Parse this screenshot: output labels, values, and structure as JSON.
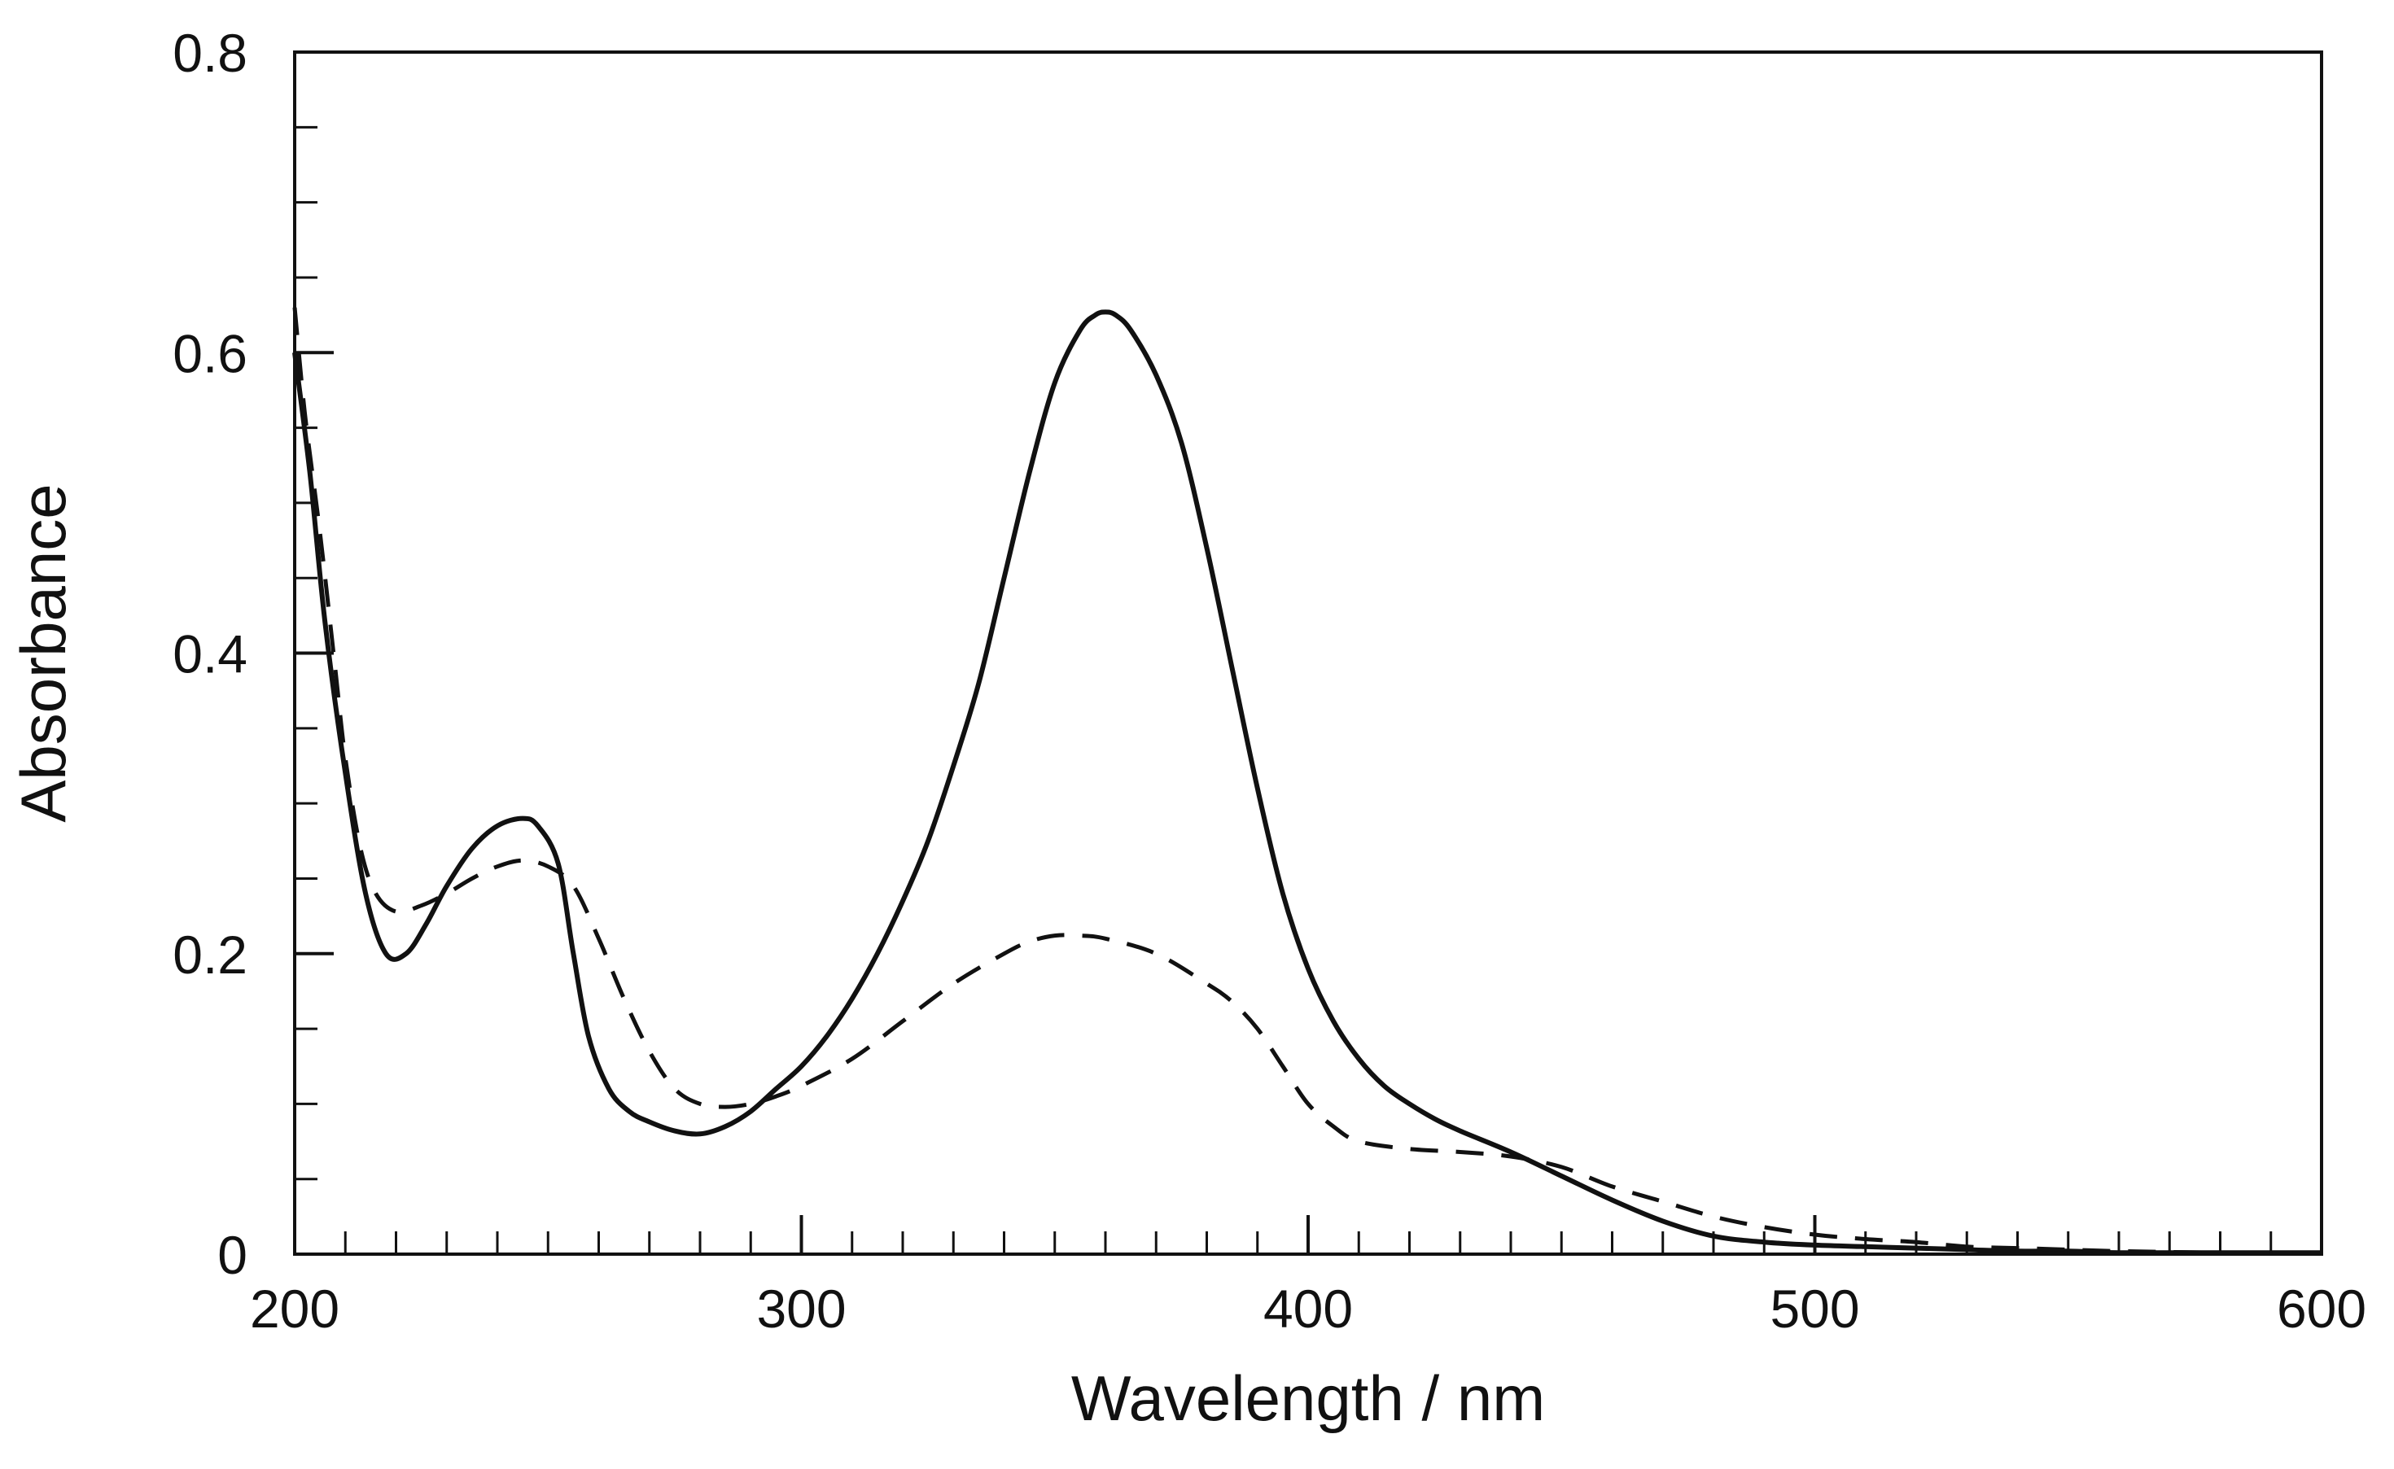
{
  "chart_data": {
    "type": "line",
    "title": "",
    "xlabel": "Wavelength / nm",
    "ylabel": "Absorbance",
    "xlim": [
      200,
      600
    ],
    "ylim": [
      0,
      0.8
    ],
    "x_major_ticks": [
      200,
      300,
      400,
      500,
      600
    ],
    "x_tick_labels": [
      "200",
      "300",
      "400",
      "500",
      "600"
    ],
    "x_minor_step": 10,
    "y_major_ticks": [
      0,
      0.2,
      0.4,
      0.6,
      0.8
    ],
    "y_tick_labels": [
      "0",
      "0.2",
      "0.4",
      "0.6",
      "0.8"
    ],
    "y_minor_step": 0.05,
    "grid": false,
    "legend": "none",
    "series": [
      {
        "name": "solid",
        "style": "solid",
        "color": "#111111",
        "x": [
          200,
          203,
          206,
          210,
          214,
          218,
          222,
          226,
          230,
          235,
          240,
          245,
          248,
          252,
          255,
          258,
          262,
          266,
          270,
          275,
          280,
          285,
          290,
          295,
          300,
          305,
          310,
          315,
          320,
          325,
          330,
          335,
          340,
          345,
          350,
          355,
          358,
          360,
          362,
          365,
          370,
          375,
          380,
          385,
          390,
          395,
          400,
          405,
          410,
          415,
          420,
          425,
          430,
          440,
          450,
          460,
          470,
          480,
          490,
          500,
          510,
          520,
          530,
          540,
          550,
          560,
          580,
          600
        ],
        "y": [
          0.6,
          0.52,
          0.42,
          0.32,
          0.24,
          0.2,
          0.2,
          0.22,
          0.245,
          0.27,
          0.285,
          0.29,
          0.285,
          0.26,
          0.2,
          0.145,
          0.11,
          0.095,
          0.088,
          0.082,
          0.08,
          0.085,
          0.095,
          0.11,
          0.125,
          0.145,
          0.17,
          0.2,
          0.235,
          0.275,
          0.325,
          0.38,
          0.45,
          0.52,
          0.58,
          0.615,
          0.625,
          0.627,
          0.625,
          0.615,
          0.585,
          0.54,
          0.47,
          0.39,
          0.31,
          0.24,
          0.19,
          0.155,
          0.13,
          0.112,
          0.1,
          0.09,
          0.082,
          0.068,
          0.052,
          0.036,
          0.022,
          0.012,
          0.008,
          0.006,
          0.005,
          0.004,
          0.003,
          0.002,
          0.002,
          0.001,
          0.001,
          0.001
        ]
      },
      {
        "name": "dashed",
        "style": "dashed",
        "color": "#111111",
        "x": [
          200,
          202,
          205,
          208,
          210,
          213,
          216,
          220,
          225,
          230,
          235,
          240,
          245,
          250,
          255,
          260,
          265,
          270,
          275,
          280,
          285,
          290,
          295,
          300,
          310,
          320,
          330,
          340,
          345,
          350,
          355,
          360,
          370,
          380,
          385,
          390,
          395,
          400,
          405,
          410,
          420,
          430,
          440,
          450,
          460,
          470,
          480,
          490,
          500,
          510,
          520,
          530,
          540,
          550,
          560,
          580,
          600
        ],
        "y": [
          0.63,
          0.56,
          0.48,
          0.39,
          0.33,
          0.27,
          0.24,
          0.228,
          0.232,
          0.24,
          0.25,
          0.258,
          0.262,
          0.258,
          0.245,
          0.21,
          0.17,
          0.135,
          0.11,
          0.1,
          0.098,
          0.1,
          0.105,
          0.112,
          0.13,
          0.155,
          0.18,
          0.2,
          0.208,
          0.212,
          0.212,
          0.21,
          0.2,
          0.18,
          0.168,
          0.15,
          0.125,
          0.1,
          0.085,
          0.075,
          0.07,
          0.068,
          0.065,
          0.058,
          0.045,
          0.035,
          0.025,
          0.018,
          0.013,
          0.01,
          0.008,
          0.005,
          0.004,
          0.003,
          0.002,
          0.001,
          0.001
        ]
      }
    ]
  }
}
